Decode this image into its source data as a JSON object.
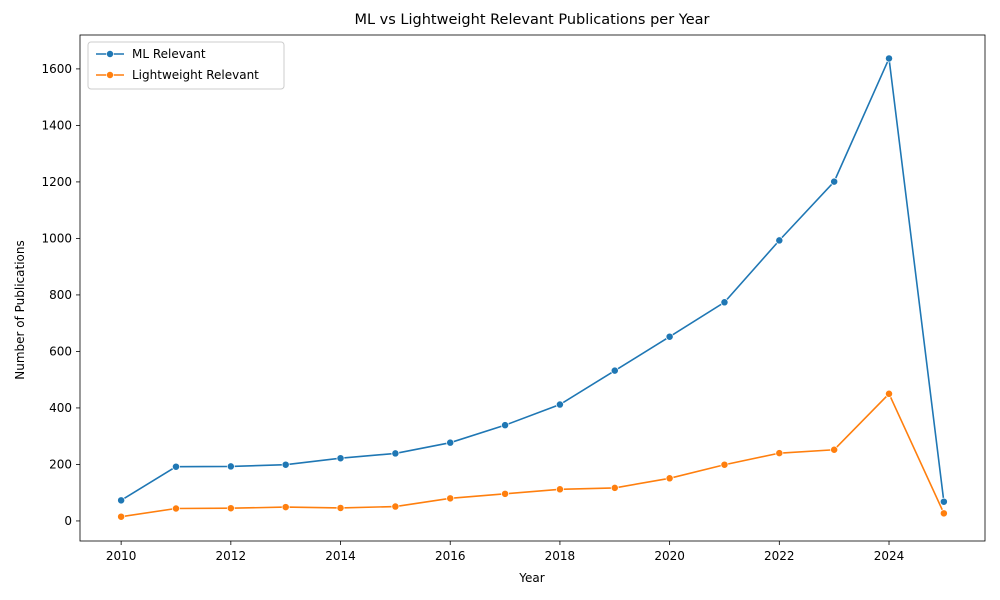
{
  "chart_data": {
    "type": "line",
    "title": "ML vs Lightweight Relevant Publications per Year",
    "xlabel": "Year",
    "ylabel": "Number of Publications",
    "x": [
      2010,
      2011,
      2012,
      2013,
      2014,
      2015,
      2016,
      2017,
      2018,
      2019,
      2020,
      2021,
      2022,
      2023,
      2024,
      2025
    ],
    "series": [
      {
        "name": "ML Relevant",
        "color": "#1f77b4",
        "values": [
          73,
          192,
          193,
          199,
          222,
          239,
          277,
          339,
          412,
          532,
          652,
          774,
          993,
          1201,
          1637,
          68
        ]
      },
      {
        "name": "Lightweight Relevant",
        "color": "#ff7f0e",
        "values": [
          15,
          44,
          45,
          49,
          46,
          51,
          80,
          96,
          112,
          117,
          151,
          199,
          240,
          252,
          450,
          27
        ]
      }
    ],
    "xlim": [
      2009.25,
      2025.75
    ],
    "ylim": [
      -71,
      1720
    ],
    "xticks": [
      2010,
      2012,
      2014,
      2016,
      2018,
      2020,
      2022,
      2024
    ],
    "yticks": [
      0,
      200,
      400,
      600,
      800,
      1000,
      1200,
      1400,
      1600
    ],
    "grid": false,
    "legend_position": "upper-left"
  }
}
